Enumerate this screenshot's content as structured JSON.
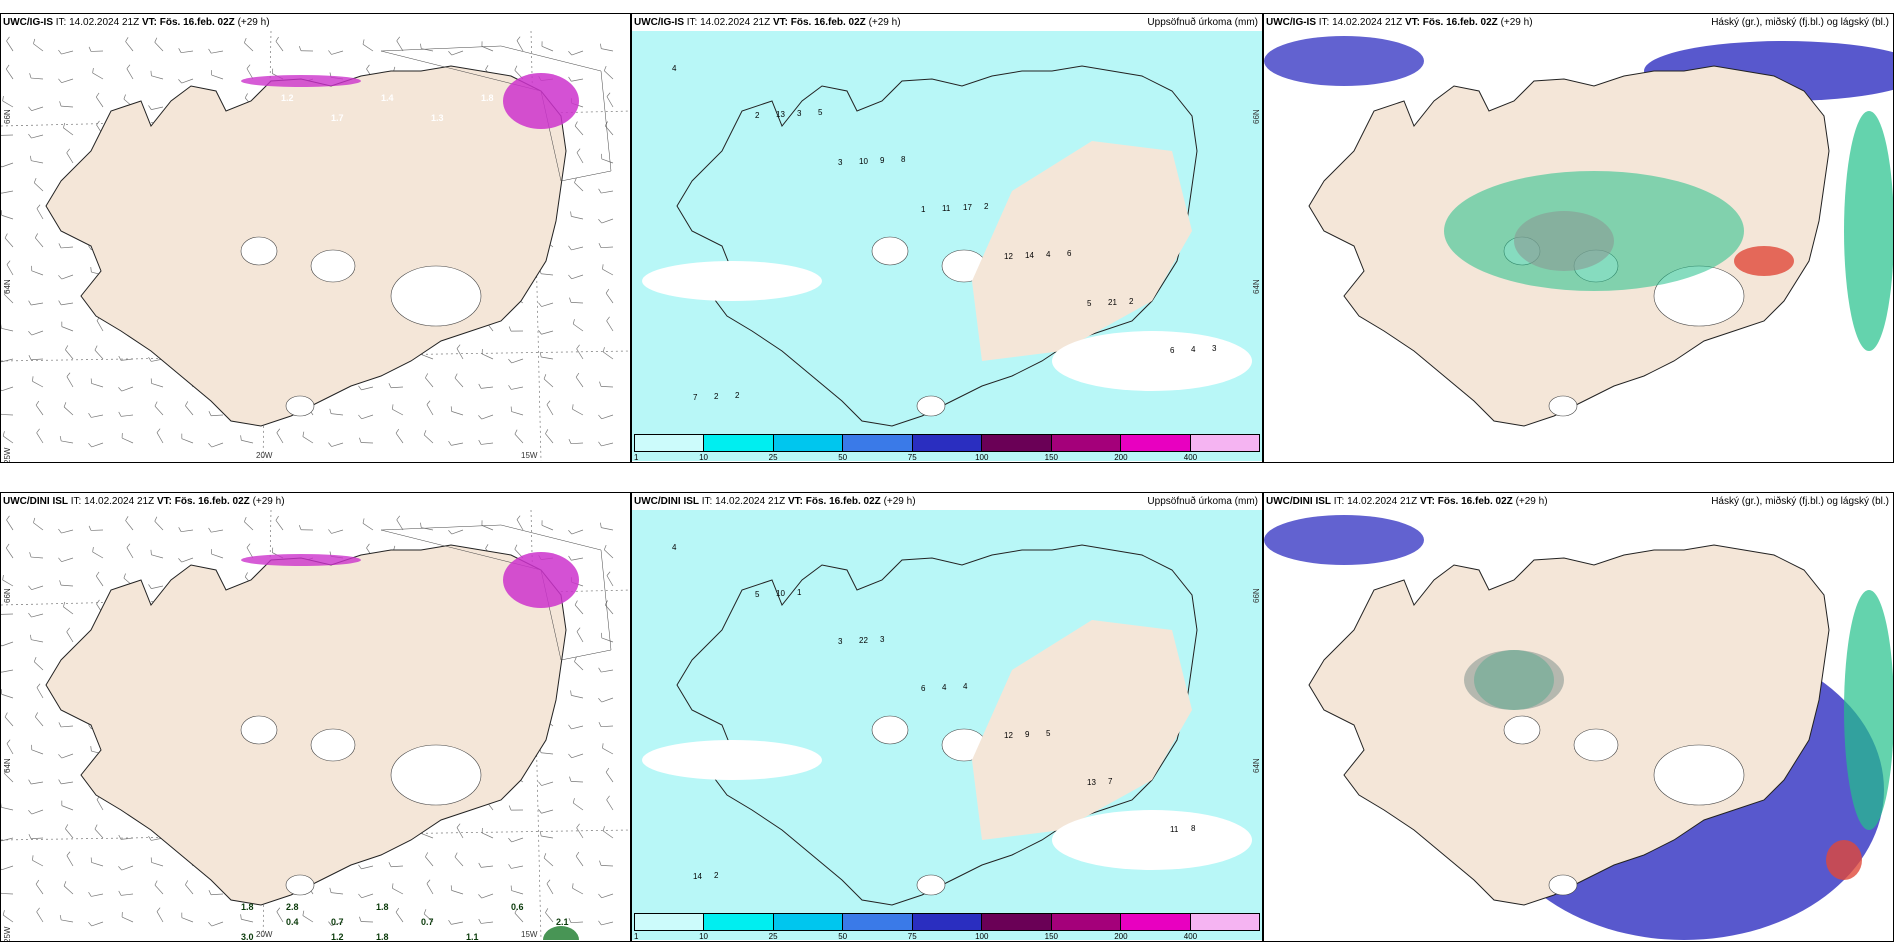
{
  "panels": [
    {
      "model": "UWC/IG-IS",
      "it": "IT: 14.02.2024 21Z",
      "vt_label": "VT:",
      "vt": "Fös. 16.feb. 02Z",
      "lead": "(+29 h)",
      "right": "",
      "kind": "wind",
      "lat_labels": [
        "66N",
        "64N",
        "25W"
      ],
      "lon_labels": [
        "20W",
        "15W"
      ]
    },
    {
      "model": "UWC/IG-IS",
      "it": "IT: 14.02.2024 21Z",
      "vt_label": "VT:",
      "vt": "Fös. 16.feb. 02Z",
      "lead": "(+29 h)",
      "right": "Uppsöfnuð úrkoma (mm)",
      "kind": "precip",
      "lat_labels": [
        "66N",
        "64N"
      ],
      "lon_labels": []
    },
    {
      "model": "UWC/IG-IS",
      "it": "IT: 14.02.2024 21Z",
      "vt_label": "VT:",
      "vt": "Fös. 16.feb. 02Z",
      "lead": "(+29 h)",
      "right": "Háský (gr.), miðský (fj.bl.) og lágský (bl.)",
      "kind": "cloud",
      "lat_labels": [],
      "lon_labels": []
    },
    {
      "model": "UWC/DINI ISL",
      "it": "IT: 14.02.2024 21Z",
      "vt_label": "VT:",
      "vt": "Fös. 16.feb. 02Z",
      "lead": "(+29 h)",
      "right": "",
      "kind": "wind",
      "lat_labels": [
        "66N",
        "64N",
        "25W"
      ],
      "lon_labels": [
        "20W",
        "15W"
      ]
    },
    {
      "model": "UWC/DINI ISL",
      "it": "IT: 14.02.2024 21Z",
      "vt_label": "VT:",
      "vt": "Fös. 16.feb. 02Z",
      "lead": "(+29 h)",
      "right": "Uppsöfnuð úrkoma (mm)",
      "kind": "precip",
      "lat_labels": [
        "66N",
        "64N"
      ],
      "lon_labels": []
    },
    {
      "model": "UWC/DINI ISL",
      "it": "IT: 14.02.2024 21Z",
      "vt_label": "VT:",
      "vt": "Fös. 16.feb. 02Z",
      "lead": "(+29 h)",
      "right": "Háský (gr.), miðský (fj.bl.) og lágský (bl.)",
      "kind": "cloud",
      "lat_labels": [],
      "lon_labels": []
    }
  ],
  "colorbar": {
    "ticks": [
      "1",
      "10",
      "25",
      "50",
      "75",
      "100",
      "150",
      "200",
      "400"
    ],
    "colors": [
      "#ccfbfb",
      "#00eef0",
      "#00c6ee",
      "#3a7ae8",
      "#2a2ec0",
      "#6a0056",
      "#a4007a",
      "#e800c0",
      "#f5b4f2"
    ]
  },
  "colors": {
    "land": "#f4e6d8",
    "sea": "#ffffff",
    "precip_light": "#b8f7f7",
    "precip_med": "#00e8ee",
    "cloud_high": "#8a9a94",
    "cloud_mid": "#3b3bc4",
    "cloud_low": "#22c08a",
    "ice_pink": "#cc33cc",
    "storm_red": "#e0483a"
  },
  "wind_values_ig": [
    "1.2",
    "1.7",
    "1.4",
    "1.3",
    "1.8"
  ],
  "wind_values_dini": [
    "1.8",
    "0.4",
    "1.2",
    "1.8",
    "0.7",
    "1.1",
    "0.6",
    "2.1",
    "3.0",
    "2.8",
    "0.7",
    "1.8"
  ],
  "precip_numbers_ig": [
    "4",
    "2",
    "3",
    "1",
    "12",
    "5",
    "6",
    "7",
    "13",
    "10",
    "11",
    "14",
    "21",
    "4",
    "2",
    "3",
    "9",
    "17",
    "4",
    "2",
    "3",
    "2",
    "5",
    "8",
    "2",
    "6"
  ],
  "precip_numbers_dini": [
    "4",
    "5",
    "3",
    "6",
    "12",
    "13",
    "11",
    "14",
    "10",
    "22",
    "4",
    "9",
    "7",
    "8",
    "2",
    "1",
    "3",
    "4",
    "5"
  ]
}
